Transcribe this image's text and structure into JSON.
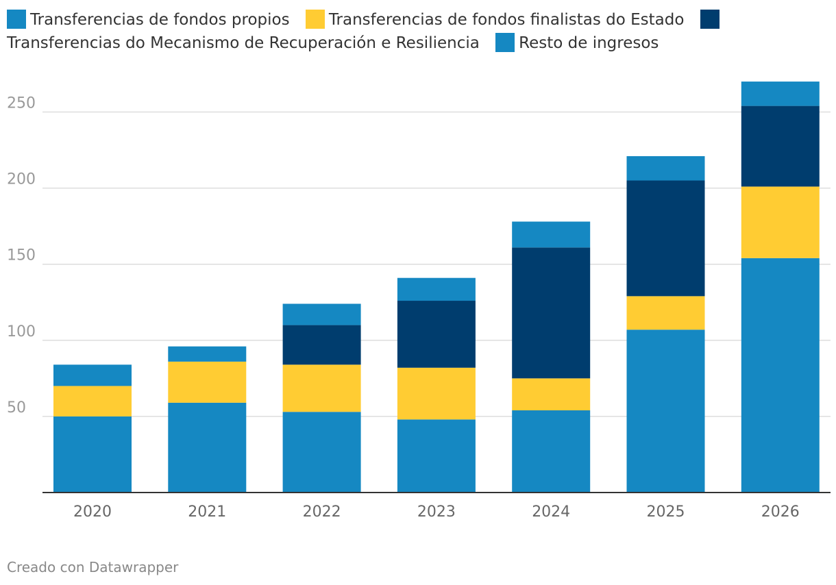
{
  "chart_data": {
    "type": "bar",
    "stacked": true,
    "categories": [
      "2020",
      "2021",
      "2022",
      "2023",
      "2024",
      "2025",
      "2026"
    ],
    "series": [
      {
        "name": "Transferencias de fondos propios",
        "color": "#1588c2",
        "values": [
          50,
          59,
          53,
          48,
          54,
          107,
          154
        ]
      },
      {
        "name": "Transferencias de fondos finalistas do Estado",
        "color": "#ffcc33",
        "values": [
          20,
          27,
          31,
          34,
          21,
          22,
          47
        ]
      },
      {
        "name": "Transferencias do Mecanismo de Recuperación e Resiliencia",
        "color": "#003d6e",
        "values": [
          0,
          0,
          26,
          44,
          86,
          76,
          53
        ]
      },
      {
        "name": "Resto de ingresos",
        "color": "#1588c2",
        "values": [
          14,
          10,
          14,
          15,
          17,
          16,
          16
        ]
      }
    ],
    "y_ticks": [
      50,
      100,
      150,
      200,
      250
    ],
    "ylim": [
      0,
      270
    ],
    "grid": true,
    "legend_position": "top"
  },
  "footer": {
    "credit": "Creado con Datawrapper"
  }
}
